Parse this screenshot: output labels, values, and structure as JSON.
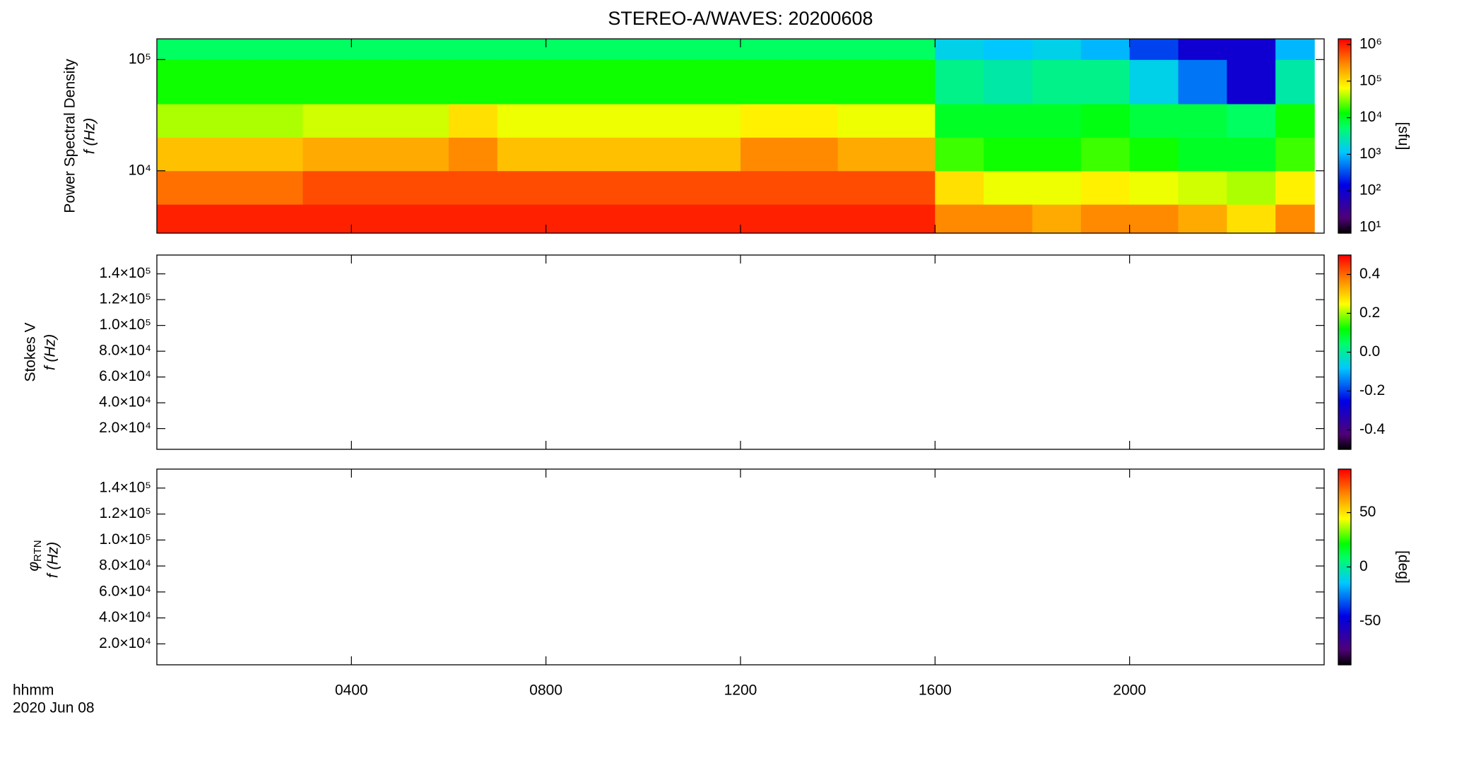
{
  "chart_data": {
    "type": "spectrogram",
    "title": "STEREO-A/WAVES: 20200608",
    "xlim": [
      0,
      24
    ],
    "xticks": [
      {
        "value": 4,
        "label": "0400"
      },
      {
        "value": 8,
        "label": "0800"
      },
      {
        "value": 12,
        "label": "1200"
      },
      {
        "value": 16,
        "label": "1600"
      },
      {
        "value": 20,
        "label": "2000"
      }
    ],
    "xlabel": "hhmm",
    "date": "2020 Jun 08",
    "colormap": "rainbow",
    "panels": [
      {
        "type": "heatmap",
        "ylabel": "Power Spectral Density",
        "ylabel2": "f (Hz)",
        "ylog": true,
        "ylim": [
          2750,
          153500
        ],
        "yticks": [
          {
            "value": 10000,
            "label": "10⁴"
          },
          {
            "value": 100000,
            "label": "10⁵"
          }
        ],
        "x_edges": [
          0,
          1,
          2,
          3,
          4,
          5,
          6,
          7,
          8,
          9,
          10,
          11,
          12,
          13,
          14,
          15,
          16,
          17,
          18,
          19,
          20,
          21,
          22,
          23,
          23.8
        ],
        "y_edges": [
          2750,
          5000,
          10000,
          20000,
          40000,
          100000,
          153500
        ],
        "z": [
          [
            1000000.0,
            1000000.0,
            1000000.0,
            1000000.0,
            1000000.0,
            1000000.0,
            1000000.0,
            1000000.0,
            1000000.0,
            1000000.0,
            1000000.0,
            1000000.0,
            1000000.0,
            1000000.0,
            1000000.0,
            1000000.0,
            300000.0,
            300000.0,
            200000.0,
            300000.0,
            300000.0,
            200000.0,
            100000.0,
            300000.0
          ],
          [
            400000.0,
            400000.0,
            400000.0,
            600000.0,
            600000.0,
            600000.0,
            600000.0,
            600000.0,
            600000.0,
            600000.0,
            600000.0,
            600000.0,
            600000.0,
            600000.0,
            600000.0,
            600000.0,
            100000.0,
            60000.0,
            60000.0,
            80000.0,
            60000.0,
            50000.0,
            40000.0,
            80000.0
          ],
          [
            150000.0,
            150000.0,
            150000.0,
            200000.0,
            200000.0,
            200000.0,
            300000.0,
            150000.0,
            150000.0,
            150000.0,
            150000.0,
            150000.0,
            300000.0,
            300000.0,
            200000.0,
            200000.0,
            20000.0,
            15000.0,
            15000.0,
            20000.0,
            15000.0,
            10000.0,
            10000.0,
            20000.0
          ],
          [
            40000.0,
            40000.0,
            40000.0,
            50000.0,
            50000.0,
            50000.0,
            100000.0,
            60000.0,
            60000.0,
            60000.0,
            60000.0,
            60000.0,
            80000.0,
            80000.0,
            60000.0,
            60000.0,
            10000.0,
            10000.0,
            10000.0,
            12000.0,
            8000.0,
            8000.0,
            6000.0,
            15000.0
          ],
          [
            15000.0,
            15000.0,
            15000.0,
            15000.0,
            15000.0,
            15000.0,
            15000.0,
            15000.0,
            15000.0,
            15000.0,
            15000.0,
            15000.0,
            15000.0,
            15000.0,
            15000.0,
            15000.0,
            4000.0,
            3000.0,
            4000.0,
            4000.0,
            1500.0,
            500.0,
            100.0,
            3000.0
          ],
          [
            6000.0,
            6000.0,
            6000.0,
            6000.0,
            6000.0,
            6000.0,
            6000.0,
            6000.0,
            6000.0,
            6000.0,
            6000.0,
            6000.0,
            6000.0,
            6000.0,
            6000.0,
            6000.0,
            1500.0,
            1200.0,
            1500.0,
            1000.0,
            300.0,
            100.0,
            100.0,
            1000.0
          ]
        ],
        "colorbar": {
          "log": true,
          "lim": [
            7,
            1430000
          ],
          "label": "[sfu]",
          "ticks": [
            {
              "value": 10,
              "label": "10¹"
            },
            {
              "value": 100,
              "label": "10²"
            },
            {
              "value": 1000,
              "label": "10³"
            },
            {
              "value": 10000,
              "label": "10⁴"
            },
            {
              "value": 100000,
              "label": "10⁵"
            },
            {
              "value": 1000000,
              "label": "10⁶"
            }
          ]
        }
      },
      {
        "type": "heatmap",
        "ylabel": "Stokes V",
        "ylabel2": "f (Hz)",
        "ylog": false,
        "ylim": [
          3900,
          154600
        ],
        "yticks": [
          {
            "value": 20000,
            "label": "2.0×10⁴"
          },
          {
            "value": 40000,
            "label": "4.0×10⁴"
          },
          {
            "value": 60000,
            "label": "6.0×10⁴"
          },
          {
            "value": 80000,
            "label": "8.0×10⁴"
          },
          {
            "value": 100000,
            "label": "1.0×10⁵"
          },
          {
            "value": 120000,
            "label": "1.2×10⁵"
          },
          {
            "value": 140000,
            "label": "1.4×10⁵"
          }
        ],
        "colorbar": {
          "log": false,
          "lim": [
            -0.5,
            0.5
          ],
          "ticks": [
            -0.4,
            -0.2,
            {
              "value": 0,
              "label": "0.0"
            },
            0.2,
            0.4
          ]
        }
      },
      {
        "type": "heatmap",
        "ylabel": "φ",
        "ylabel_sub": "RTN",
        "ylabel2": "f (Hz)",
        "ylog": false,
        "ylim": [
          3900,
          154600
        ],
        "yticks": [
          {
            "value": 20000,
            "label": "2.0×10⁴"
          },
          {
            "value": 40000,
            "label": "4.0×10⁴"
          },
          {
            "value": 60000,
            "label": "6.0×10⁴"
          },
          {
            "value": 80000,
            "label": "8.0×10⁴"
          },
          {
            "value": 100000,
            "label": "1.0×10⁵"
          },
          {
            "value": 120000,
            "label": "1.2×10⁵"
          },
          {
            "value": 140000,
            "label": "1.4×10⁵"
          }
        ],
        "colorbar": {
          "log": false,
          "lim": [
            -90,
            90
          ],
          "label": "[deg]",
          "ticks": [
            -50,
            0,
            50
          ]
        }
      }
    ]
  }
}
